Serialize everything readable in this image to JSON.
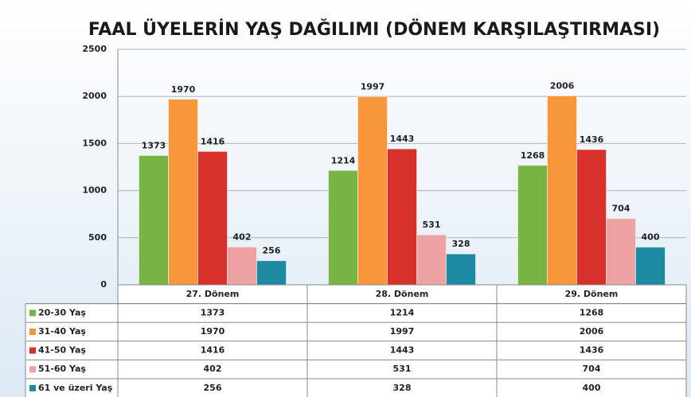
{
  "chart_data": {
    "type": "bar",
    "title": "FAAL ÜYELERİN YAŞ DAĞILIMI (DÖNEM KARŞILAŞTIRMASI)",
    "categories": [
      "27. Dönem",
      "28. Dönem",
      "29. Dönem"
    ],
    "series": [
      {
        "name": "20-30 Yaş",
        "color": "#78b444",
        "values": [
          1373,
          1214,
          1268
        ]
      },
      {
        "name": "31-40 Yaş",
        "color": "#f7963a",
        "values": [
          1970,
          1997,
          2006
        ]
      },
      {
        "name": "41-50 Yaş",
        "color": "#d8302b",
        "values": [
          1416,
          1443,
          1436
        ]
      },
      {
        "name": "51-60 Yaş",
        "color": "#eea3a3",
        "values": [
          402,
          531,
          704
        ]
      },
      {
        "name": "61 ve üzeri Yaş",
        "color": "#1d8aa2",
        "values": [
          256,
          328,
          400
        ]
      }
    ],
    "ylim": [
      0,
      2500
    ],
    "yticks": [
      0,
      500,
      1000,
      1500,
      2000,
      2500
    ],
    "grid": true
  }
}
